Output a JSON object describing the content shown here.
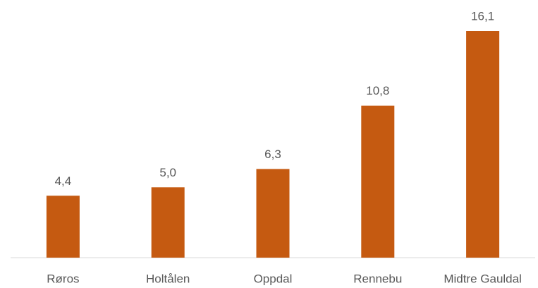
{
  "chart_data": {
    "type": "bar",
    "categories": [
      "Røros",
      "Holtålen",
      "Oppdal",
      "Rennebu",
      "Midtre Gauldal"
    ],
    "values": [
      4.4,
      5.0,
      6.3,
      10.8,
      16.1
    ],
    "value_labels": [
      "4,4",
      "5,0",
      "6,3",
      "10,8",
      "16,1"
    ],
    "color": "#c55a11"
  }
}
